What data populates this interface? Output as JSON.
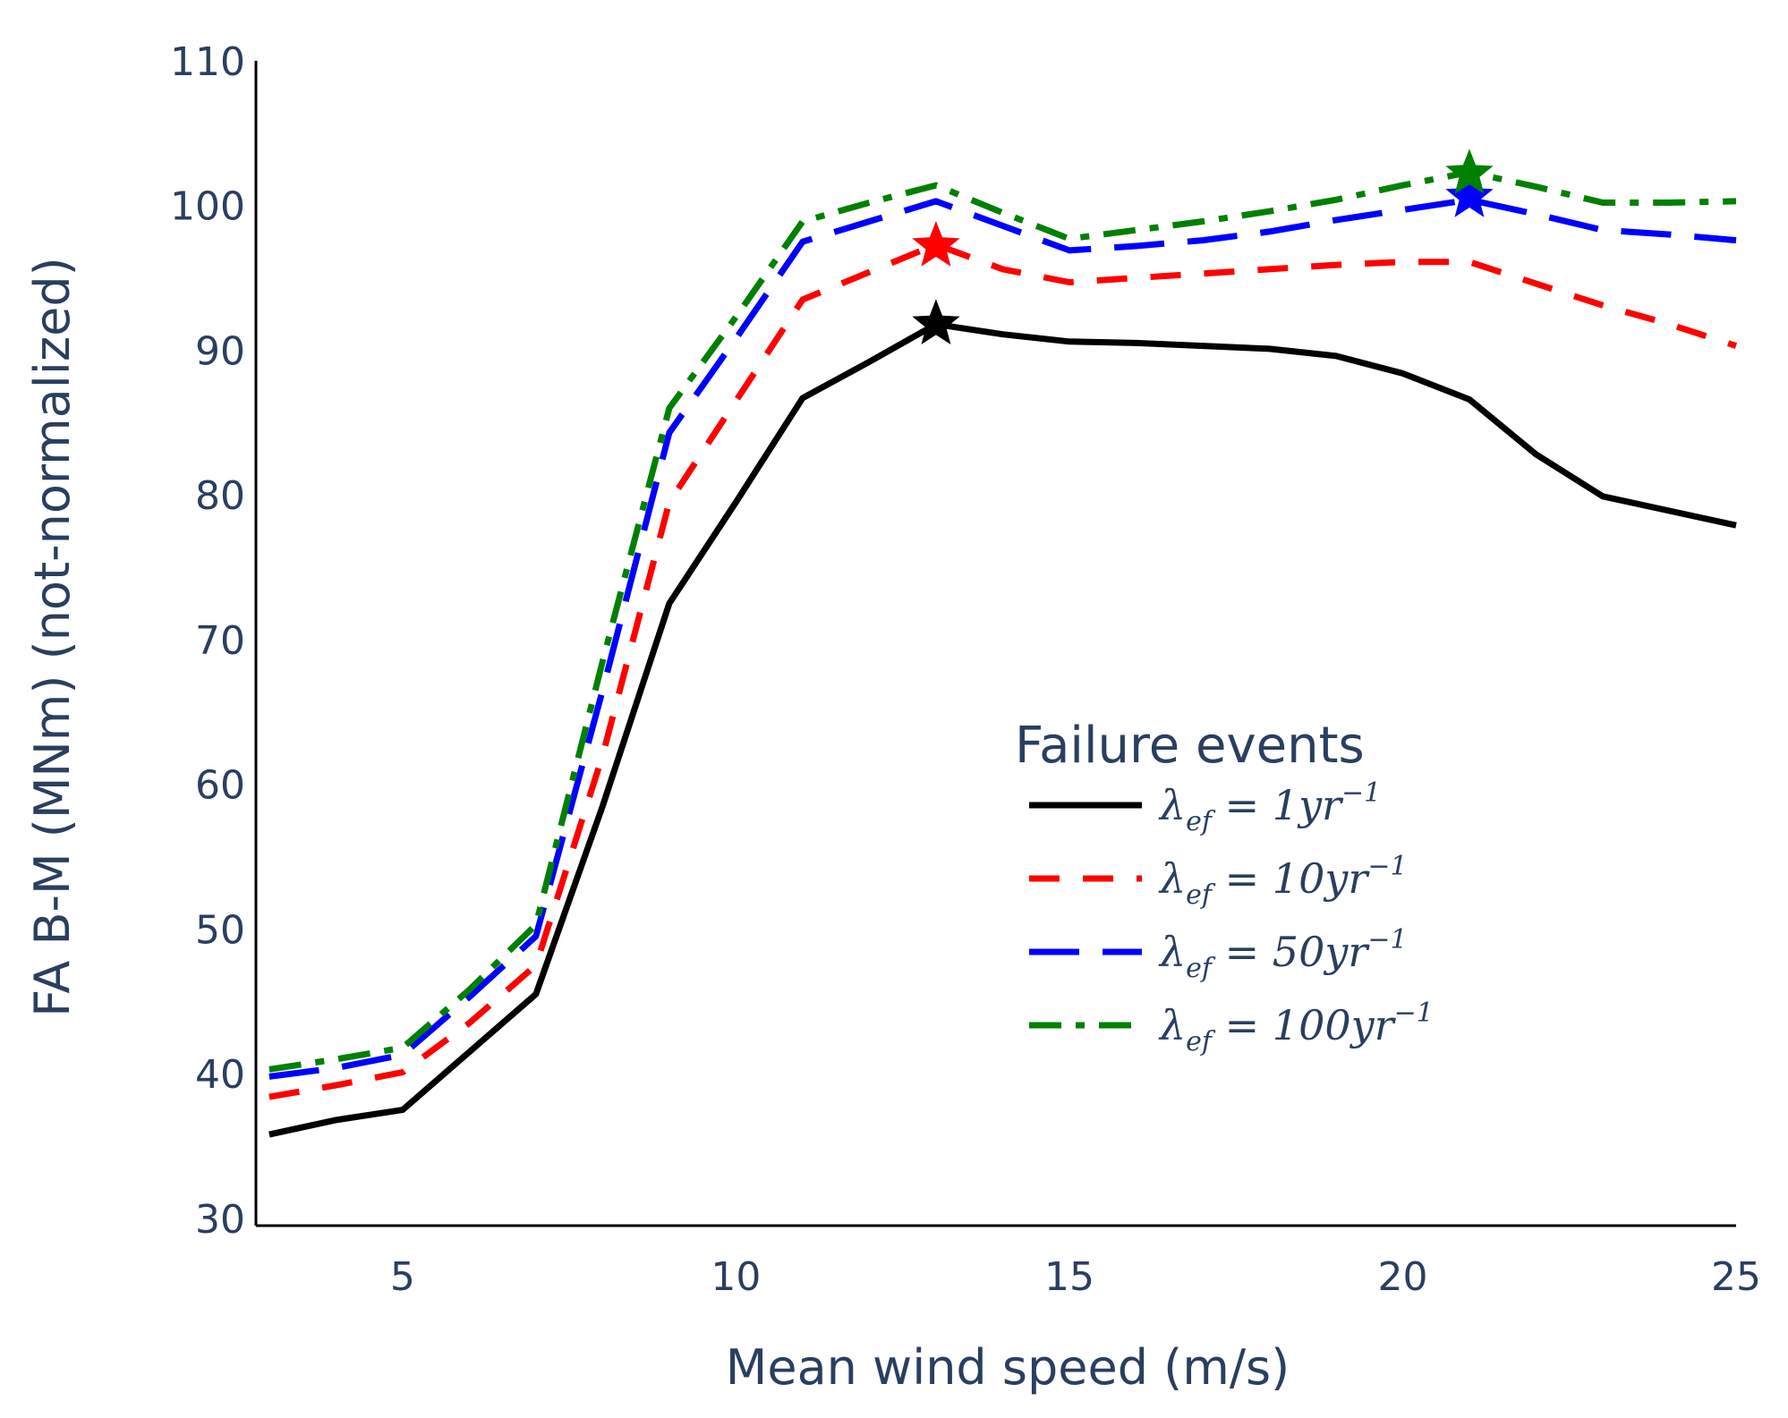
{
  "chart_data": {
    "type": "line",
    "title": "",
    "xlabel": "Mean wind speed (m/s)",
    "ylabel": "FA B-M (MNm) (not-normalized)",
    "xlim": [
      2.8,
      25
    ],
    "ylim": [
      29.5,
      110
    ],
    "xticks": [
      5,
      10,
      15,
      20,
      25
    ],
    "yticks": [
      30,
      40,
      50,
      60,
      70,
      80,
      90,
      100,
      110
    ],
    "grid": false,
    "legend": {
      "title": "Failure events",
      "position": "center-right",
      "entries": [
        {
          "base": "λ",
          "sub": "ef",
          "mid": " = 1yr",
          "sup": "−1"
        },
        {
          "base": "λ",
          "sub": "ef",
          "mid": " = 10yr",
          "sup": "−1"
        },
        {
          "base": "λ",
          "sub": "ef",
          "mid": " = 50yr",
          "sup": "−1"
        },
        {
          "base": "λ",
          "sub": "ef",
          "mid": " = 100yr",
          "sup": "−1"
        }
      ]
    },
    "x": [
      3,
      4,
      5,
      6,
      7,
      8,
      9,
      10,
      11,
      12,
      13,
      14,
      15,
      16,
      17,
      18,
      19,
      20,
      21,
      22,
      23,
      24,
      25
    ],
    "series": [
      {
        "name": "λef = 1yr−1",
        "color": "#000000",
        "dash": "solid",
        "values": [
          35.8,
          36.8,
          37.5,
          41.5,
          45.5,
          58.5,
          72.5,
          79.5,
          86.7,
          89.2,
          91.8,
          91.1,
          90.6,
          90.5,
          90.3,
          90.1,
          89.6,
          88.4,
          86.6,
          82.8,
          79.9,
          78.9,
          77.9
        ],
        "marker": {
          "x": 13,
          "y": 91.8,
          "symbol": "star"
        }
      },
      {
        "name": "λef = 10yr−1",
        "color": "#ff0000",
        "dash": "dash",
        "values": [
          38.4,
          39.2,
          40.1,
          43.5,
          47.5,
          62.0,
          79.5,
          86.5,
          93.5,
          95.4,
          97.3,
          95.6,
          94.7,
          95.0,
          95.3,
          95.6,
          95.9,
          96.1,
          96.1,
          94.6,
          93.1,
          91.8,
          90.3
        ],
        "marker": {
          "x": 13,
          "y": 97.2,
          "symbol": "star"
        }
      },
      {
        "name": "λef = 50yr−1",
        "color": "#0000ff",
        "dash": "longdash",
        "values": [
          39.8,
          40.4,
          41.3,
          45.3,
          49.5,
          66.5,
          84.3,
          90.8,
          97.5,
          98.9,
          100.3,
          98.6,
          96.9,
          97.2,
          97.6,
          98.2,
          99.0,
          99.7,
          100.4,
          99.4,
          98.3,
          98.0,
          97.6
        ],
        "marker": {
          "x": 21,
          "y": 100.6,
          "symbol": "star"
        }
      },
      {
        "name": "λef = 100yr−1",
        "color": "#008000",
        "dash": "dashdot",
        "values": [
          40.3,
          41.0,
          41.8,
          45.8,
          50.3,
          68.5,
          86.0,
          92.3,
          98.9,
          100.2,
          101.4,
          99.5,
          97.7,
          98.3,
          98.9,
          99.6,
          100.4,
          101.4,
          102.3,
          101.3,
          100.2,
          100.2,
          100.3
        ],
        "marker": {
          "x": 21,
          "y": 102.2,
          "symbol": "star"
        }
      }
    ]
  }
}
